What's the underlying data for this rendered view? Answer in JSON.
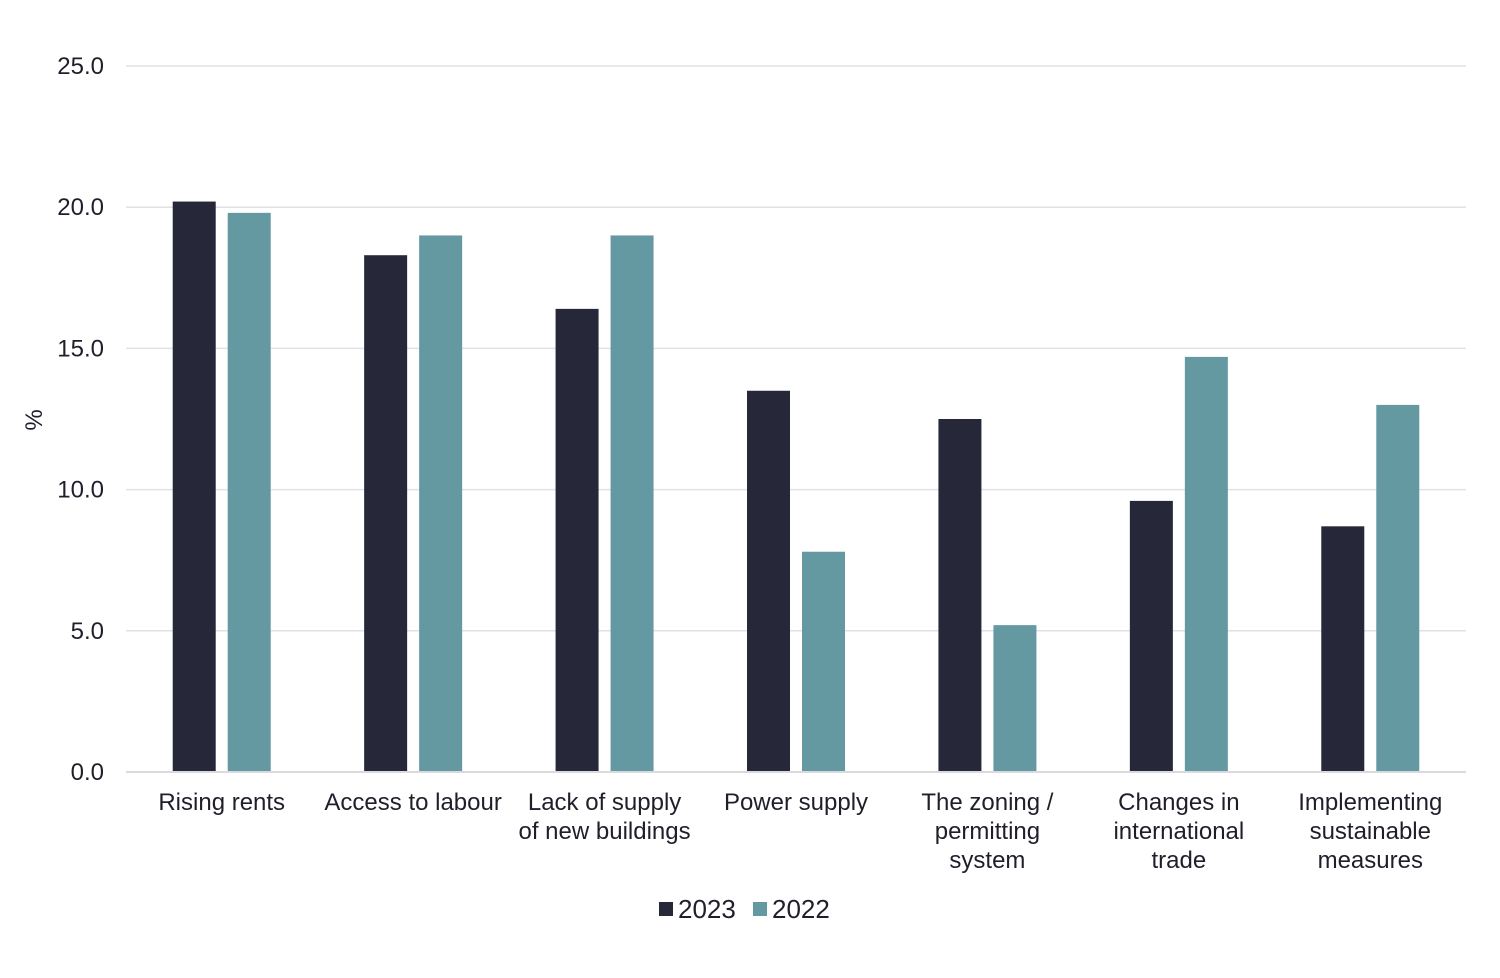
{
  "chart_data": {
    "type": "bar",
    "categories": [
      [
        "Rising rents"
      ],
      [
        "Access to labour"
      ],
      [
        "Lack of supply",
        "of new buildings"
      ],
      [
        "Power supply"
      ],
      [
        "The zoning /",
        "permitting",
        "system"
      ],
      [
        "Changes in",
        "international",
        "trade"
      ],
      [
        "Implementing",
        "sustainable",
        "measures"
      ]
    ],
    "series": [
      {
        "name": "2023",
        "color": "#262839",
        "values": [
          20.2,
          18.3,
          16.4,
          13.5,
          12.5,
          9.6,
          8.7
        ]
      },
      {
        "name": "2022",
        "color": "#6499a2",
        "values": [
          19.8,
          19.0,
          19.0,
          7.8,
          5.2,
          14.7,
          13.0
        ]
      }
    ],
    "ylabel": "%",
    "ylim": [
      0,
      25
    ],
    "yticks": [
      "0.0",
      "5.0",
      "10.0",
      "15.0",
      "20.0",
      "25.0"
    ],
    "grid": true,
    "legend_position": "bottom"
  }
}
